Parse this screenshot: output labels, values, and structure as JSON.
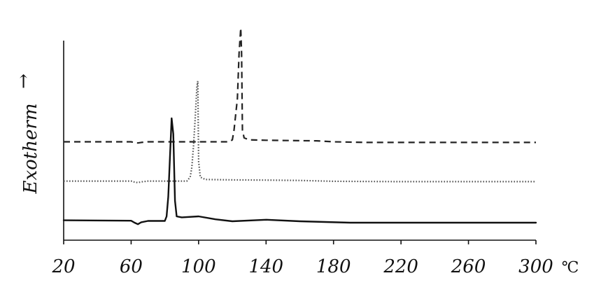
{
  "chart_data": {
    "type": "line",
    "title": "",
    "xlabel": "",
    "x_unit": "℃",
    "ylabel": "Exotherm",
    "ylabel_arrow": "→",
    "xlim": [
      20,
      300
    ],
    "x_ticks": [
      20,
      60,
      100,
      140,
      180,
      220,
      260,
      300
    ],
    "grid": false,
    "legend": "none",
    "series": [
      {
        "style": "dashed",
        "color": "#222222",
        "x": [
          20,
          60,
          62,
          64,
          66,
          70,
          100,
          118,
          120,
          121,
          123,
          124,
          125,
          125.5,
          126,
          127,
          130,
          140,
          160,
          170,
          180,
          200,
          240,
          300
        ],
        "y": [
          4.0,
          4.0,
          3.96,
          3.94,
          3.97,
          4.0,
          4.0,
          4.0,
          4.1,
          4.6,
          6.2,
          8.5,
          9.8,
          8.5,
          4.6,
          4.2,
          4.1,
          4.08,
          4.06,
          4.05,
          4.0,
          3.97,
          3.97,
          3.97
        ]
      },
      {
        "style": "dotted",
        "color": "#555555",
        "x": [
          20,
          60,
          62,
          64,
          66,
          70,
          90,
          93,
          95,
          96,
          97,
          98,
          99,
          99.5,
          100,
          101,
          104,
          120,
          140,
          160,
          180,
          220,
          300
        ],
        "y": [
          2.0,
          2.0,
          1.95,
          1.92,
          1.96,
          2.0,
          2.0,
          2.0,
          2.2,
          2.7,
          3.8,
          5.2,
          6.8,
          7.1,
          3.0,
          2.2,
          2.08,
          2.06,
          2.05,
          2.03,
          1.99,
          1.97,
          1.97
        ]
      },
      {
        "style": "solid",
        "color": "#111111",
        "x": [
          20,
          60,
          62,
          64,
          66,
          70,
          80,
          81,
          82,
          83,
          84,
          85,
          86,
          87,
          90,
          100,
          110,
          120,
          140,
          160,
          190,
          220,
          300
        ],
        "y": [
          0.0,
          -0.02,
          -0.12,
          -0.2,
          -0.1,
          -0.03,
          -0.03,
          0.2,
          1.2,
          3.2,
          5.2,
          4.4,
          1.0,
          0.2,
          0.15,
          0.2,
          0.05,
          -0.05,
          0.03,
          -0.05,
          -0.12,
          -0.12,
          -0.12
        ]
      }
    ]
  }
}
